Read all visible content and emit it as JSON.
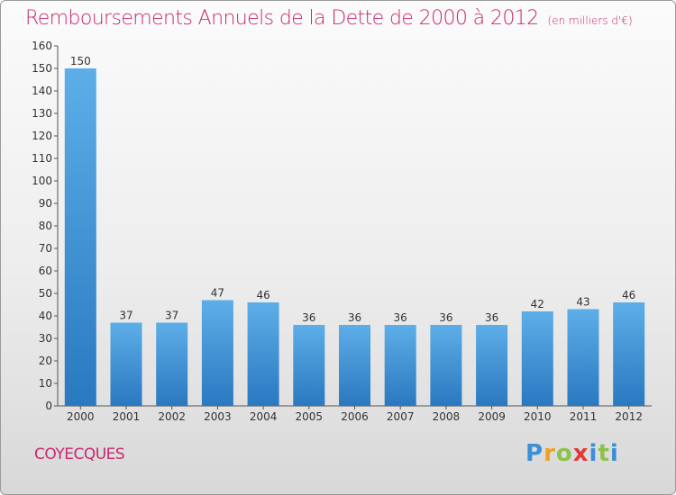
{
  "chart_data": {
    "type": "bar",
    "title": "Remboursements Annuels de la Dette de 2000 à 2012",
    "subtitle": "(en milliers d'€)",
    "categories": [
      "2000",
      "2001",
      "2002",
      "2003",
      "2004",
      "2005",
      "2006",
      "2007",
      "2008",
      "2009",
      "2010",
      "2011",
      "2012"
    ],
    "values": [
      150,
      37,
      37,
      47,
      46,
      36,
      36,
      36,
      36,
      36,
      42,
      43,
      46
    ],
    "ylim": [
      0,
      160
    ],
    "yticks": [
      0,
      10,
      20,
      30,
      40,
      50,
      60,
      70,
      80,
      90,
      100,
      110,
      120,
      130,
      140,
      150,
      160
    ],
    "grid": false,
    "bar_color": "#3a8fd6",
    "title_color": "#c8286e"
  },
  "footer": {
    "place_name": "COYECQUES",
    "logo_text": "Proxiti"
  }
}
